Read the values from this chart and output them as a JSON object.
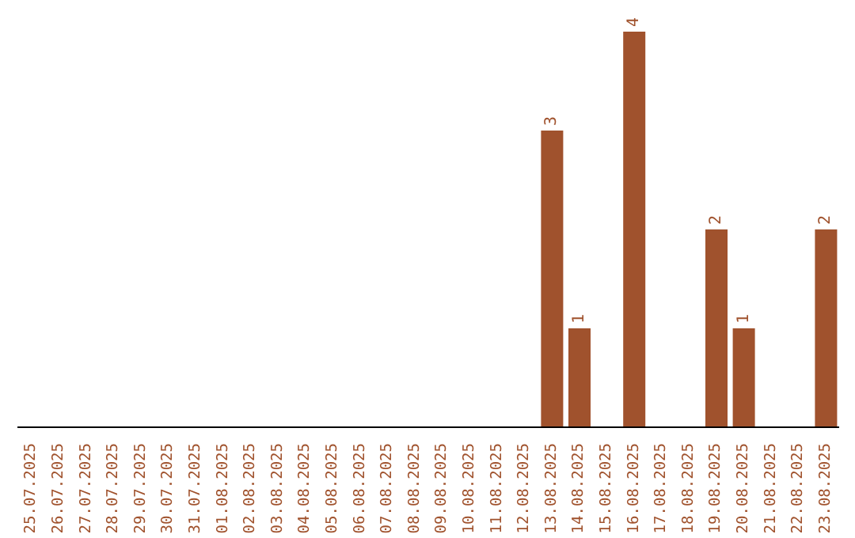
{
  "chart_data": {
    "type": "bar",
    "categories": [
      "25.07.2025",
      "26.07.2025",
      "27.07.2025",
      "28.07.2025",
      "29.07.2025",
      "30.07.2025",
      "31.07.2025",
      "01.08.2025",
      "02.08.2025",
      "03.08.2025",
      "04.08.2025",
      "05.08.2025",
      "06.08.2025",
      "07.08.2025",
      "08.08.2025",
      "09.08.2025",
      "10.08.2025",
      "11.08.2025",
      "12.08.2025",
      "13.08.2025",
      "14.08.2025",
      "15.08.2025",
      "16.08.2025",
      "17.08.2025",
      "18.08.2025",
      "19.08.2025",
      "20.08.2025",
      "21.08.2025",
      "22.08.2025",
      "23.08.2025"
    ],
    "values": [
      null,
      null,
      null,
      null,
      null,
      null,
      null,
      null,
      null,
      null,
      null,
      null,
      null,
      null,
      null,
      null,
      null,
      null,
      null,
      3,
      1,
      null,
      4,
      null,
      null,
      2,
      1,
      null,
      null,
      2
    ],
    "data_labels": true,
    "color": "#a0522d",
    "grid": false,
    "legend": false
  }
}
